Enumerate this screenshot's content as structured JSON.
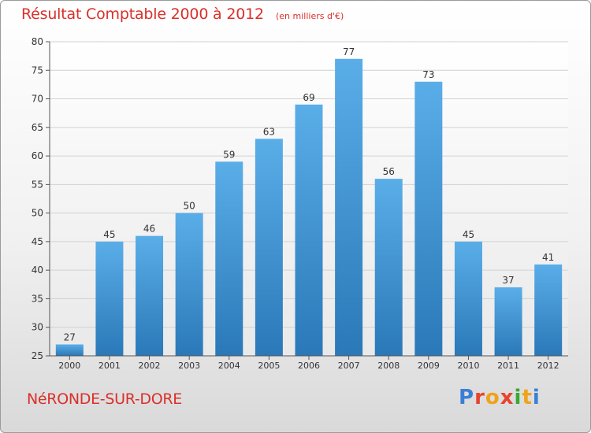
{
  "header": {
    "title": "Résultat Comptable 2000 à 2012",
    "subtitle": "(en milliers d'€)"
  },
  "footer": {
    "commune": "NéRONDE-SUR-DORE",
    "logo_text": "Proxiti",
    "logo_colors": [
      "#3a7fd5",
      "#e8432e",
      "#f0a21a",
      "#e8432e",
      "#3aa835",
      "#f0a21a",
      "#3a7fd5"
    ]
  },
  "chart_data": {
    "type": "bar",
    "title": "Résultat Comptable 2000 à 2012",
    "subtitle": "(en milliers d'€)",
    "categories": [
      "2000",
      "2001",
      "2002",
      "2003",
      "2004",
      "2005",
      "2006",
      "2007",
      "2008",
      "2009",
      "2010",
      "2011",
      "2012"
    ],
    "values": [
      27,
      45,
      46,
      50,
      59,
      63,
      69,
      77,
      56,
      73,
      45,
      37,
      41
    ],
    "yticks": [
      25,
      30,
      35,
      40,
      45,
      50,
      55,
      60,
      65,
      70,
      75,
      80
    ],
    "ylim": [
      25,
      80
    ],
    "xlabel": "",
    "ylabel": "",
    "grid": true,
    "bar_color_top": "#5aaee8",
    "bar_color_bottom": "#2a78b8"
  }
}
